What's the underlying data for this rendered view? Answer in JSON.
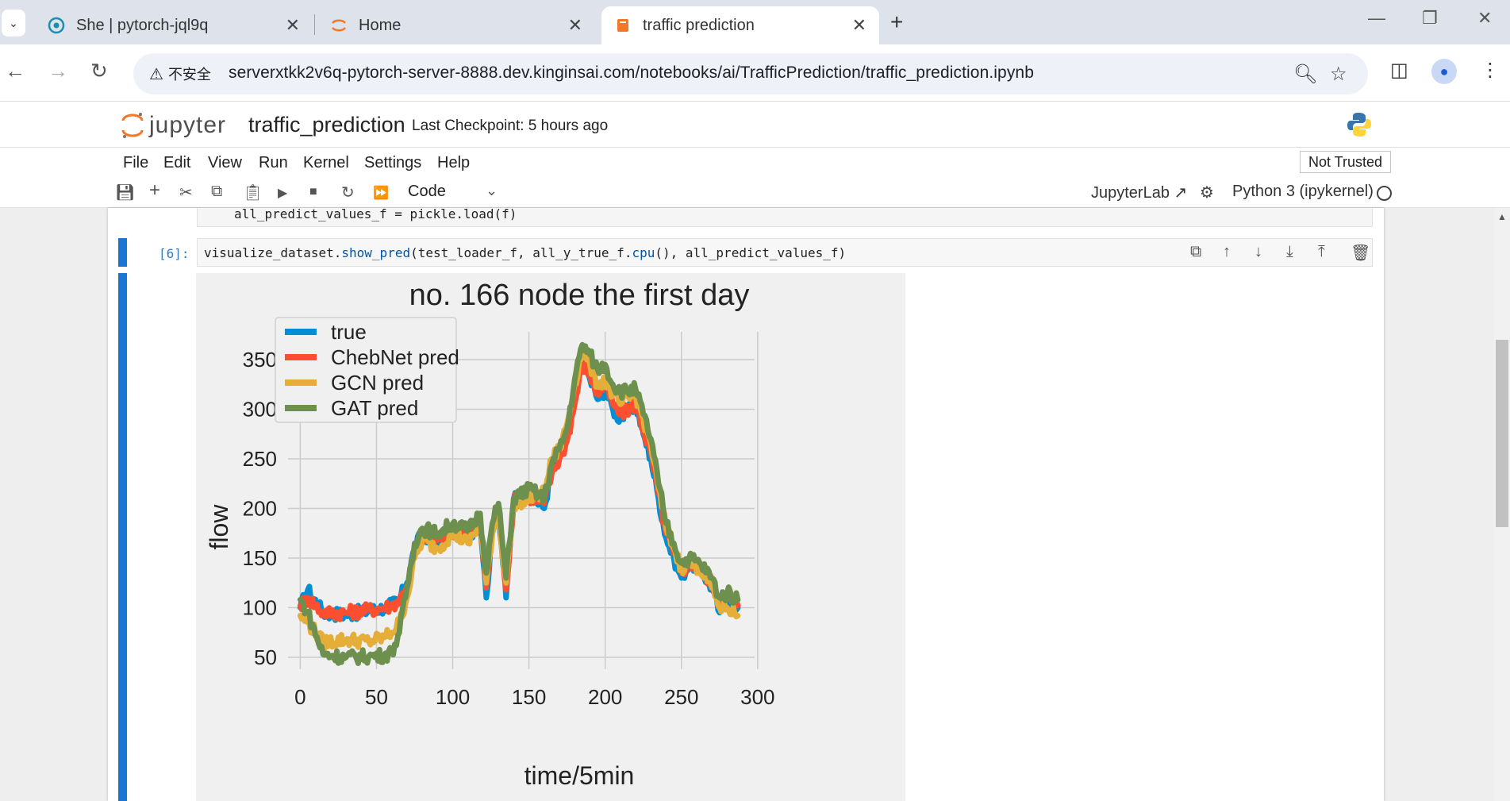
{
  "browser": {
    "tabs": [
      {
        "title": "She | pytorch-jql9q",
        "active": false
      },
      {
        "title": "Home",
        "active": false
      },
      {
        "title": "traffic  prediction",
        "active": true
      }
    ],
    "security_label": "不安全",
    "url": "serverxtkk2v6q-pytorch-server-8888.dev.kinginsai.com/notebooks/ai/TrafficPrediction/traffic_prediction.ipynb"
  },
  "jupyter": {
    "logo_text": "jupyter",
    "notebook_title": "traffic_prediction",
    "checkpoint": "Last Checkpoint: 5 hours ago",
    "menu": [
      "File",
      "Edit",
      "View",
      "Run",
      "Kernel",
      "Settings",
      "Help"
    ],
    "trust_label": "Not Trusted",
    "cell_type": "Code",
    "jupyterlab_label": "JupyterLab",
    "kernel_label": "Python 3 (ipykernel)"
  },
  "cells": {
    "previous_code": "all_predict_values_f = pickle.load(f)",
    "prompt": "[6]:",
    "code_pre": "visualize_dataset.",
    "code_fn1": "show_pred",
    "code_mid": "(test_loader_f, all_y_true_f.",
    "code_fn2": "cpu",
    "code_post": "(), all_predict_values_f)"
  },
  "chart_data": {
    "type": "line",
    "title": "no. 166 node the first day",
    "xlabel": "time/5min",
    "ylabel": "flow",
    "xlim": [
      -8,
      298
    ],
    "ylim": [
      38,
      378
    ],
    "xticks": [
      0,
      50,
      100,
      150,
      200,
      250,
      300
    ],
    "yticks": [
      50,
      100,
      150,
      200,
      250,
      300,
      350
    ],
    "grid": true,
    "legend_position": "top-left",
    "key_points_x": [
      0,
      5,
      15,
      30,
      45,
      55,
      60,
      65,
      70,
      75,
      80,
      90,
      100,
      110,
      118,
      122,
      126,
      130,
      135,
      140,
      150,
      160,
      165,
      170,
      175,
      180,
      185,
      190,
      195,
      200,
      205,
      210,
      220,
      225,
      230,
      235,
      240,
      245,
      250,
      255,
      262,
      270,
      275,
      280,
      287
    ],
    "series": [
      {
        "name": "true",
        "color": "#008fd5",
        "values": [
          100,
          118,
          95,
          93,
          97,
          100,
          103,
          108,
          125,
          160,
          175,
          165,
          180,
          170,
          190,
          110,
          180,
          200,
          110,
          210,
          215,
          200,
          240,
          250,
          270,
          310,
          350,
          330,
          310,
          320,
          300,
          290,
          305,
          275,
          250,
          210,
          170,
          150,
          130,
          145,
          140,
          120,
          95,
          110,
          100
        ]
      },
      {
        "name": "ChebNet pred",
        "color": "#fc4f30",
        "values": [
          102,
          110,
          95,
          95,
          98,
          100,
          102,
          108,
          122,
          155,
          172,
          168,
          178,
          172,
          188,
          120,
          178,
          198,
          118,
          208,
          212,
          205,
          235,
          250,
          268,
          305,
          345,
          335,
          315,
          325,
          305,
          295,
          305,
          280,
          255,
          215,
          175,
          155,
          135,
          145,
          140,
          125,
          105,
          110,
          102
        ]
      },
      {
        "name": "GCN pred",
        "color": "#e5ae38",
        "values": [
          92,
          85,
          65,
          68,
          66,
          70,
          75,
          85,
          110,
          150,
          168,
          160,
          175,
          165,
          185,
          125,
          175,
          195,
          125,
          205,
          210,
          215,
          250,
          260,
          285,
          325,
          360,
          345,
          325,
          330,
          315,
          305,
          315,
          290,
          265,
          220,
          180,
          160,
          140,
          145,
          140,
          120,
          100,
          100,
          92
        ]
      },
      {
        "name": "GAT pred",
        "color": "#6d904f",
        "values": [
          108,
          95,
          53,
          50,
          51,
          52,
          55,
          75,
          120,
          165,
          180,
          175,
          185,
          178,
          195,
          135,
          185,
          205,
          130,
          210,
          220,
          210,
          245,
          260,
          280,
          330,
          365,
          355,
          340,
          345,
          325,
          318,
          320,
          295,
          270,
          225,
          185,
          165,
          145,
          150,
          145,
          130,
          110,
          115,
          108
        ]
      }
    ]
  }
}
